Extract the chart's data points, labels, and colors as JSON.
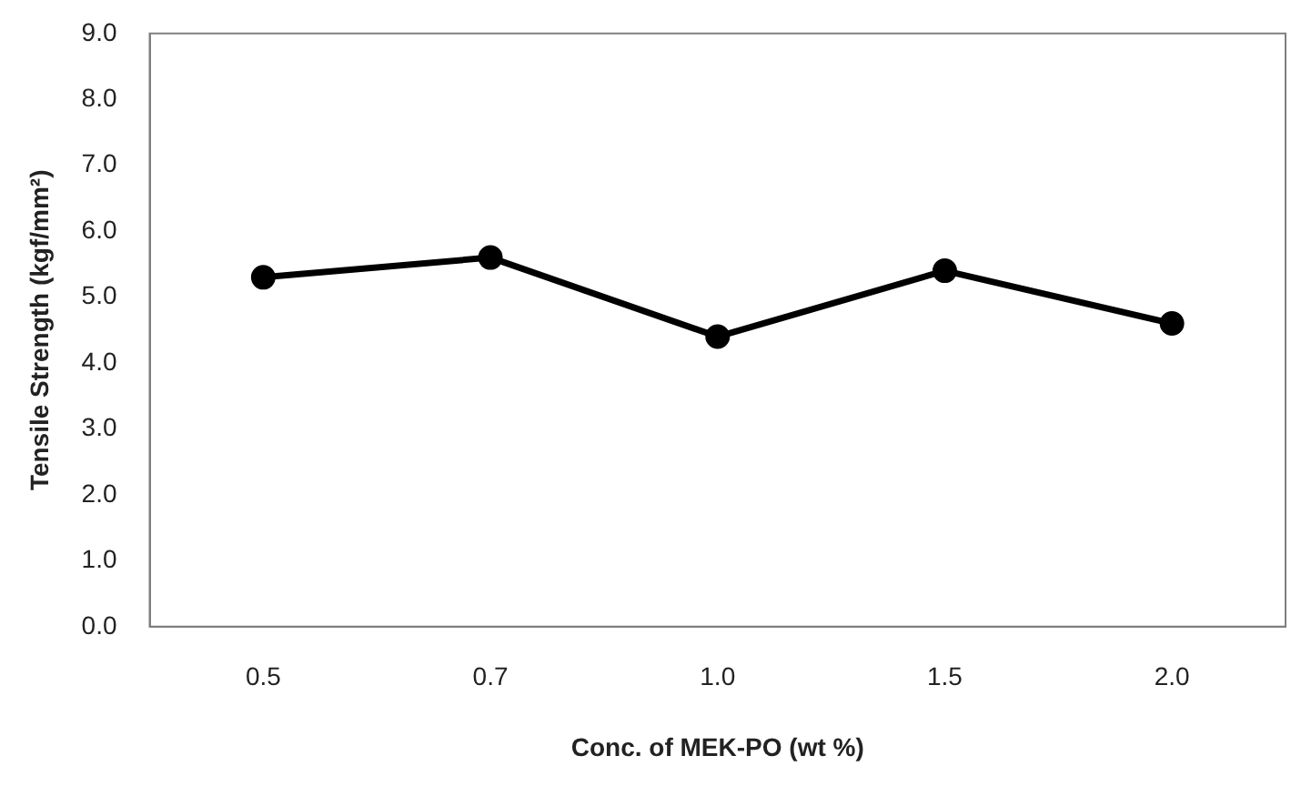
{
  "chart_data": {
    "type": "line",
    "xlabel": "Conc. of MEK-PO (wt %)",
    "ylabel": "Tensile Strength (kgf/mm²)",
    "categories": [
      "0.5",
      "0.7",
      "1.0",
      "1.5",
      "2.0"
    ],
    "series": [
      {
        "color": "#000000",
        "values": [
          5.3,
          5.6,
          4.4,
          5.4,
          4.6
        ]
      }
    ],
    "ylim": [
      0,
      9
    ],
    "yticks": [
      {
        "value": 0,
        "label": "0.0"
      },
      {
        "value": 1,
        "label": "1.0"
      },
      {
        "value": 2,
        "label": "2.0"
      },
      {
        "value": 3,
        "label": "3.0"
      },
      {
        "value": 4,
        "label": "4.0"
      },
      {
        "value": 5,
        "label": "5.0"
      },
      {
        "value": 6,
        "label": "6.0"
      },
      {
        "value": 7,
        "label": "7.0"
      },
      {
        "value": 8,
        "label": "8.0"
      },
      {
        "value": 9,
        "label": "9.0"
      }
    ],
    "grid": false,
    "legend": false,
    "marker": "circle",
    "line_style": "solid"
  }
}
